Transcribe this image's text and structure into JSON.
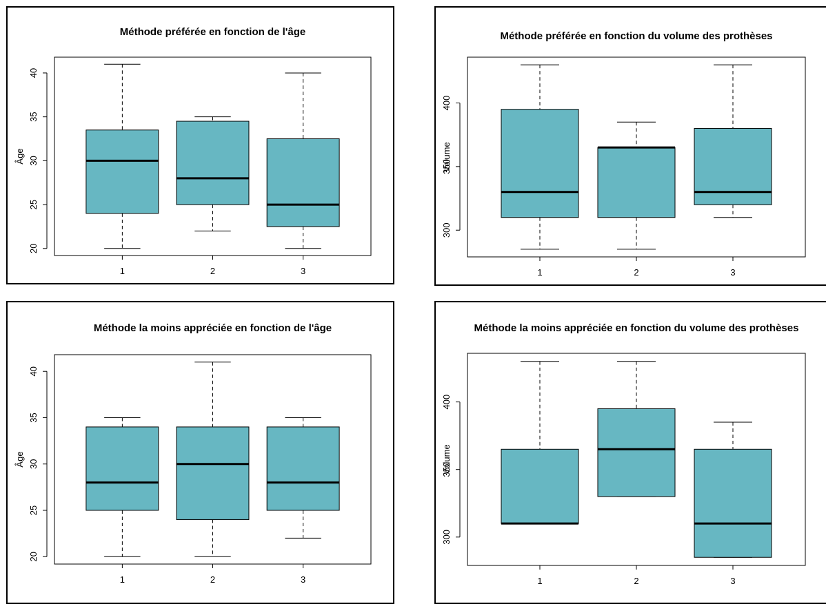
{
  "style": {
    "box_fill": "#67b7c2",
    "box_stroke": "#000000",
    "background": "#ffffff"
  },
  "chart_data": [
    {
      "type": "boxplot",
      "title": "Méthode préférée en fonction de l'âge",
      "ylabel": "Âge",
      "xlabel": "",
      "categories": [
        "1",
        "2",
        "3"
      ],
      "ylim": [
        19.2,
        41.8
      ],
      "yticks": [
        "20",
        "25",
        "30",
        "35",
        "40"
      ],
      "boxes": [
        {
          "min": 20,
          "q1": 24,
          "median": 30,
          "q3": 33.5,
          "max": 41
        },
        {
          "min": 22,
          "q1": 25,
          "median": 28,
          "q3": 34.5,
          "max": 35
        },
        {
          "min": 20,
          "q1": 22.5,
          "median": 25,
          "q3": 32.5,
          "max": 40
        }
      ]
    },
    {
      "type": "boxplot",
      "title": "Méthode préférée en fonction du volume des prothèses",
      "ylabel": "Volume",
      "xlabel": "",
      "categories": [
        "1",
        "2",
        "3"
      ],
      "ylim": [
        279,
        436
      ],
      "yticks": [
        "300",
        "350",
        "400"
      ],
      "boxes": [
        {
          "min": 285,
          "q1": 310,
          "median": 330,
          "q3": 395,
          "max": 430
        },
        {
          "min": 285,
          "q1": 310,
          "median": 365,
          "q3": 365,
          "max": 385
        },
        {
          "min": 310,
          "q1": 320,
          "median": 330,
          "q3": 380,
          "max": 430
        }
      ]
    },
    {
      "type": "boxplot",
      "title": "Méthode la moins appréciée en fonction de l'âge",
      "ylabel": "Âge",
      "xlabel": "",
      "categories": [
        "1",
        "2",
        "3"
      ],
      "ylim": [
        19.2,
        41.8
      ],
      "yticks": [
        "20",
        "25",
        "30",
        "35",
        "40"
      ],
      "boxes": [
        {
          "min": 20,
          "q1": 25,
          "median": 28,
          "q3": 34,
          "max": 35
        },
        {
          "min": 20,
          "q1": 24,
          "median": 30,
          "q3": 34,
          "max": 41
        },
        {
          "min": 22,
          "q1": 25,
          "median": 28,
          "q3": 34,
          "max": 35
        }
      ]
    },
    {
      "type": "boxplot",
      "title": "Méthode la moins appréciée en fonction du volume des prothèses",
      "ylabel": "Volume",
      "xlabel": "",
      "categories": [
        "1",
        "2",
        "3"
      ],
      "ylim": [
        279,
        436
      ],
      "yticks": [
        "300",
        "350",
        "400"
      ],
      "boxes": [
        {
          "min": 310,
          "q1": 310,
          "median": 310,
          "q3": 365,
          "max": 430
        },
        {
          "min": 330,
          "q1": 330,
          "median": 365,
          "q3": 395,
          "max": 430
        },
        {
          "min": 285,
          "q1": 285,
          "median": 310,
          "q3": 365,
          "max": 385
        }
      ]
    }
  ]
}
